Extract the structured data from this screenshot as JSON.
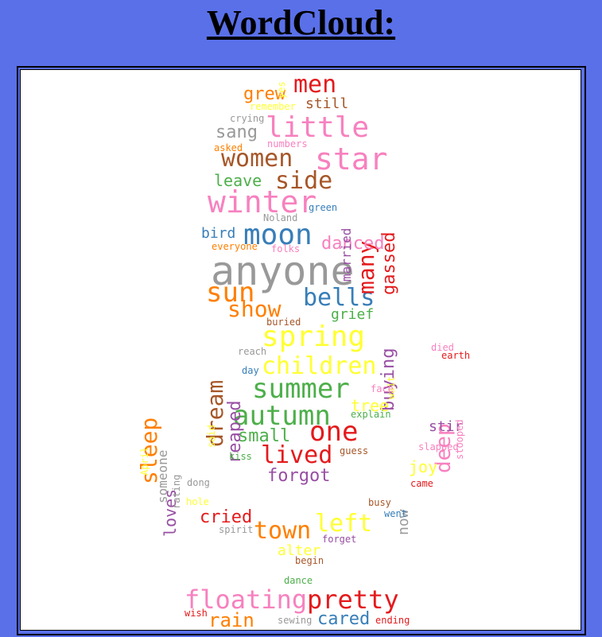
{
  "title": "WordCloud:",
  "palette": {
    "red": "#e41a1c",
    "blue": "#377eb8",
    "green": "#4daf4a",
    "purple": "#984ea3",
    "orange": "#ff7f00",
    "yellow": "#ffff33",
    "brown": "#a65628",
    "pink": "#f781bf",
    "gray": "#999999",
    "background": "#ffffff",
    "page": "#5a70e9"
  },
  "words": [
    {
      "text": "anyone",
      "color": "#999999"
    },
    {
      "text": "winter",
      "color": "#f781bf"
    },
    {
      "text": "little",
      "color": "#f781bf"
    },
    {
      "text": "star",
      "color": "#f781bf"
    },
    {
      "text": "moon",
      "color": "#377eb8"
    },
    {
      "text": "spring",
      "color": "#ffff33"
    },
    {
      "text": "summer",
      "color": "#4daf4a"
    },
    {
      "text": "autumn",
      "color": "#4daf4a"
    },
    {
      "text": "one",
      "color": "#e41a1c"
    },
    {
      "text": "children",
      "color": "#ffff33"
    },
    {
      "text": "sun",
      "color": "#ff7f00"
    },
    {
      "text": "show",
      "color": "#ff7f00"
    },
    {
      "text": "bells",
      "color": "#377eb8"
    },
    {
      "text": "floating",
      "color": "#f781bf"
    },
    {
      "text": "pretty",
      "color": "#e41a1c"
    },
    {
      "text": "women",
      "color": "#a65628"
    },
    {
      "text": "side",
      "color": "#a65628"
    },
    {
      "text": "men",
      "color": "#e41a1c"
    },
    {
      "text": "lived",
      "color": "#e41a1c"
    },
    {
      "text": "town",
      "color": "#ff7f00"
    },
    {
      "text": "left",
      "color": "#ffff33"
    },
    {
      "text": "many",
      "color": "#e41a1c"
    },
    {
      "text": "dream",
      "color": "#a65628"
    },
    {
      "text": "sleep",
      "color": "#ff7f00"
    },
    {
      "text": "deep",
      "color": "#f781bf"
    },
    {
      "text": "danced",
      "color": "#f781bf"
    },
    {
      "text": "sang",
      "color": "#999999"
    },
    {
      "text": "small",
      "color": "#4daf4a"
    },
    {
      "text": "forgot",
      "color": "#984ea3"
    },
    {
      "text": "rain",
      "color": "#ff7f00"
    },
    {
      "text": "cared",
      "color": "#377eb8"
    },
    {
      "text": "cried",
      "color": "#e41a1c"
    },
    {
      "text": "reaped",
      "color": "#984ea3"
    },
    {
      "text": "gassed",
      "color": "#e41a1c"
    },
    {
      "text": "grew",
      "color": "#ff7f00"
    },
    {
      "text": "still",
      "color": "#a65628"
    },
    {
      "text": "leave",
      "color": "#4daf4a"
    },
    {
      "text": "bird",
      "color": "#377eb8"
    },
    {
      "text": "grief",
      "color": "#4daf4a"
    },
    {
      "text": "buying",
      "color": "#984ea3"
    },
    {
      "text": "tree",
      "color": "#ffff33"
    },
    {
      "text": "loves",
      "color": "#984ea3"
    },
    {
      "text": "someone",
      "color": "#999999"
    },
    {
      "text": "married",
      "color": "#984ea3"
    },
    {
      "text": "stir",
      "color": "#984ea3"
    },
    {
      "text": "joy",
      "color": "#ffff33"
    },
    {
      "text": "now",
      "color": "#999999"
    },
    {
      "text": "alter",
      "color": "#ffff33"
    },
    {
      "text": "crying",
      "color": "#999999"
    },
    {
      "text": "remember",
      "color": "#ffff33"
    },
    {
      "text": "yes",
      "color": "#ffff33"
    },
    {
      "text": "numbers",
      "color": "#f781bf"
    },
    {
      "text": "asked",
      "color": "#ff7f00"
    },
    {
      "text": "green",
      "color": "#377eb8"
    },
    {
      "text": "Noland",
      "color": "#999999"
    },
    {
      "text": "everyone",
      "color": "#ff7f00"
    },
    {
      "text": "folks",
      "color": "#f781bf"
    },
    {
      "text": "buried",
      "color": "#a65628"
    },
    {
      "text": "reach",
      "color": "#999999"
    },
    {
      "text": "day",
      "color": "#377eb8"
    },
    {
      "text": "wait",
      "color": "#ffff33"
    },
    {
      "text": "face",
      "color": "#f781bf"
    },
    {
      "text": "explain",
      "color": "#4daf4a"
    },
    {
      "text": "said",
      "color": "#ffff33"
    },
    {
      "text": "kiss",
      "color": "#4daf4a"
    },
    {
      "text": "guess",
      "color": "#a65628"
    },
    {
      "text": "April",
      "color": "#ffff33"
    },
    {
      "text": "rating",
      "color": "#999999"
    },
    {
      "text": "dong",
      "color": "#999999"
    },
    {
      "text": "hole",
      "color": "#ffff33"
    },
    {
      "text": "died",
      "color": "#f781bf"
    },
    {
      "text": "earth",
      "color": "#e41a1c"
    },
    {
      "text": "stooped",
      "color": "#f781bf"
    },
    {
      "text": "slapped",
      "color": "#f781bf"
    },
    {
      "text": "came",
      "color": "#e41a1c"
    },
    {
      "text": "busy",
      "color": "#a65628"
    },
    {
      "text": "went",
      "color": "#377eb8"
    },
    {
      "text": "spirit",
      "color": "#999999"
    },
    {
      "text": "forget",
      "color": "#984ea3"
    },
    {
      "text": "begin",
      "color": "#a65628"
    },
    {
      "text": "dance",
      "color": "#4daf4a"
    },
    {
      "text": "wish",
      "color": "#e41a1c"
    },
    {
      "text": "sewing",
      "color": "#999999"
    },
    {
      "text": "ending",
      "color": "#e41a1c"
    }
  ]
}
